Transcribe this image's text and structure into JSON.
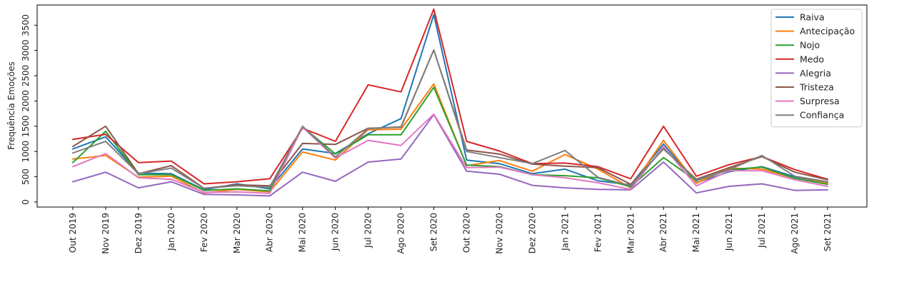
{
  "chart_data": {
    "type": "line",
    "ylabel": "Frequência Emoções",
    "xlabel": "",
    "ylim": [
      -100,
      3900
    ],
    "yticks": [
      0,
      500,
      1000,
      1500,
      2000,
      2500,
      3000,
      3500
    ],
    "grid": false,
    "legend_position": "top-right",
    "categories": [
      "Out 2019",
      "Nov 2019",
      "Dez 2019",
      "Jan 2020",
      "Fev 2020",
      "Mar 2020",
      "Abr 2020",
      "Mai 2020",
      "Jun 2020",
      "Jul 2020",
      "Ago 2020",
      "Set 2020",
      "Out 2020",
      "Nov 2020",
      "Dez 2020",
      "Jan 2021",
      "Fev 2021",
      "Mar 2021",
      "Abr 2021",
      "Mai 2021",
      "Jun 2021",
      "Jul 2021",
      "Ago 2021",
      "Set 2021"
    ],
    "series": [
      {
        "name": "Raiva",
        "color": "#1f77b4",
        "values": [
          1050,
          1290,
          570,
          560,
          240,
          360,
          260,
          1050,
          960,
          1350,
          1650,
          3710,
          830,
          760,
          560,
          650,
          420,
          340,
          1150,
          380,
          600,
          700,
          500,
          390
        ]
      },
      {
        "name": "Antecipação",
        "color": "#ff7f0e",
        "values": [
          850,
          920,
          490,
          510,
          180,
          250,
          200,
          990,
          830,
          1430,
          1440,
          2340,
          720,
          820,
          610,
          940,
          650,
          280,
          1220,
          370,
          670,
          650,
          470,
          370
        ]
      },
      {
        "name": "Nojo",
        "color": "#2ca02c",
        "values": [
          780,
          1400,
          540,
          540,
          230,
          260,
          220,
          1490,
          950,
          1330,
          1330,
          2270,
          730,
          700,
          540,
          520,
          480,
          300,
          880,
          420,
          640,
          690,
          470,
          350
        ]
      },
      {
        "name": "Medo",
        "color": "#d62728",
        "values": [
          1240,
          1340,
          780,
          810,
          360,
          400,
          460,
          1460,
          1200,
          2320,
          2180,
          3820,
          1200,
          1010,
          760,
          770,
          700,
          460,
          1500,
          510,
          740,
          900,
          640,
          450
        ]
      },
      {
        "name": "Alegria",
        "color": "#9467bd",
        "values": [
          400,
          590,
          280,
          400,
          150,
          140,
          120,
          590,
          410,
          790,
          850,
          1730,
          610,
          550,
          330,
          280,
          250,
          240,
          790,
          180,
          310,
          360,
          230,
          240
        ]
      },
      {
        "name": "Tristeza",
        "color": "#8c564b",
        "values": [
          1100,
          1500,
          560,
          720,
          270,
          340,
          320,
          1160,
          1140,
          1460,
          1480,
          3010,
          1030,
          950,
          750,
          710,
          680,
          350,
          1050,
          450,
          680,
          900,
          590,
          440
        ]
      },
      {
        "name": "Surpresa",
        "color": "#e377c2",
        "values": [
          700,
          960,
          480,
          450,
          190,
          200,
          170,
          1480,
          870,
          1220,
          1120,
          1740,
          680,
          690,
          540,
          480,
          380,
          250,
          1100,
          320,
          620,
          620,
          440,
          310
        ]
      },
      {
        "name": "Confiança",
        "color": "#7f7f7f",
        "values": [
          970,
          1200,
          560,
          670,
          270,
          320,
          290,
          1500,
          890,
          1450,
          1490,
          3010,
          1000,
          880,
          760,
          1020,
          490,
          320,
          1060,
          430,
          640,
          920,
          510,
          400
        ]
      }
    ]
  }
}
